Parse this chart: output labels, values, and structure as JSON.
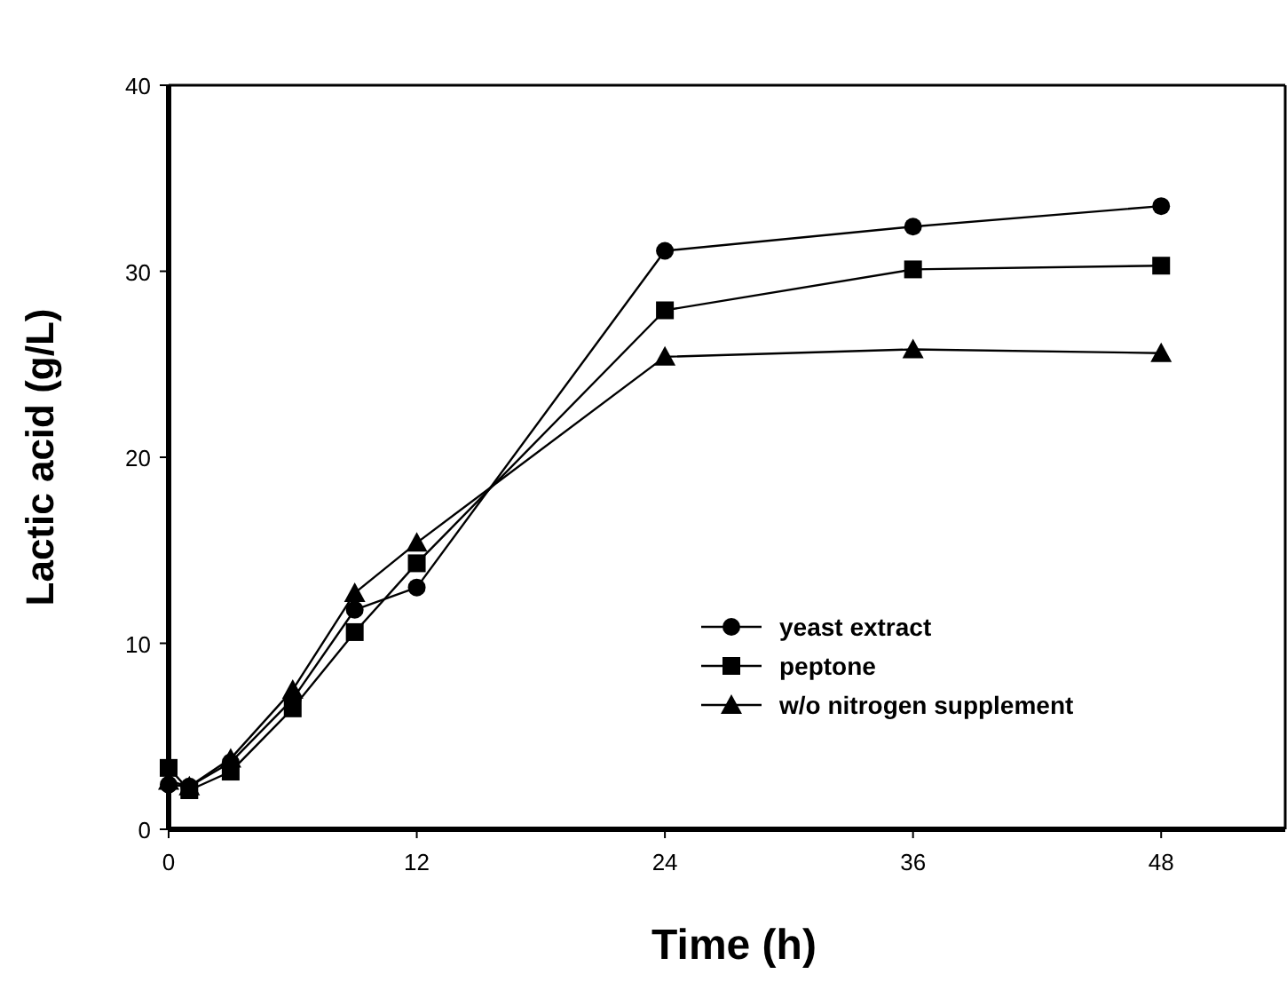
{
  "chart_data": {
    "type": "line",
    "xlabel": "Time (h)",
    "ylabel": "Lactic acid (g/L)",
    "xlim": [
      0,
      54
    ],
    "xticks": [
      0,
      12,
      24,
      36,
      48
    ],
    "ylim": [
      0,
      40
    ],
    "yticks": [
      0,
      10,
      20,
      30,
      40
    ],
    "legend": "bottom right",
    "grid": false,
    "line_style": "solid",
    "series": [
      {
        "name": "yeast extract",
        "color": "#000000",
        "marker": "circle",
        "x": [
          0,
          1,
          3,
          6,
          9,
          12,
          24,
          36,
          48
        ],
        "values": [
          2.4,
          2.3,
          3.6,
          7.0,
          11.8,
          13.0,
          31.1,
          32.4,
          33.5
        ]
      },
      {
        "name": "peptone",
        "color": "#000000",
        "marker": "square",
        "x": [
          0,
          1,
          3,
          6,
          9,
          12,
          24,
          36,
          48
        ],
        "values": [
          3.3,
          2.1,
          3.1,
          6.5,
          10.6,
          14.3,
          27.9,
          30.1,
          30.3
        ]
      },
      {
        "name": "w/o nitrogen supplement",
        "color": "#000000",
        "marker": "triangle",
        "x": [
          0,
          1,
          3,
          6,
          9,
          12,
          24,
          36,
          48
        ],
        "values": [
          2.6,
          2.3,
          3.8,
          7.5,
          12.7,
          15.4,
          25.4,
          25.8,
          25.6
        ]
      }
    ]
  }
}
